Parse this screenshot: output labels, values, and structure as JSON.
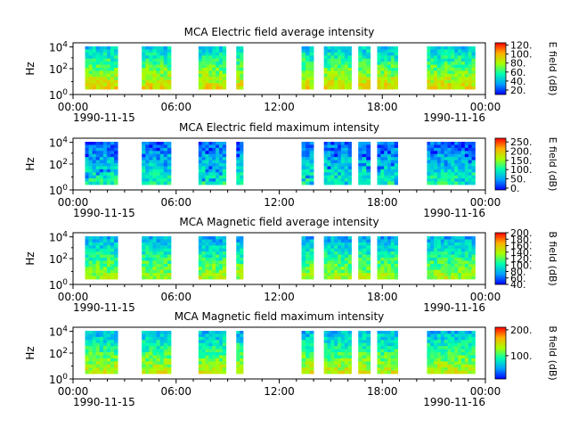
{
  "chart_data": [
    {
      "type": "heatmap",
      "title": "MCA  Electric field average intensity",
      "ylabel": "Hz",
      "y_ticks": [
        "10^0",
        "10^2",
        "10^4"
      ],
      "x_ticks": [
        "00:00",
        "06:00",
        "12:00",
        "18:00",
        "00:00"
      ],
      "x_date_start": "1990-11-15",
      "x_date_end": "1990-11-16",
      "colorbar": {
        "label": "E field (dB)",
        "ticks": [
          "20.",
          "40.",
          "60.",
          "80.",
          "100.",
          "120."
        ],
        "range": [
          10,
          125
        ]
      },
      "data_intervals_hours": [
        [
          0.7,
          2.6
        ],
        [
          4.0,
          5.7
        ],
        [
          7.3,
          8.9
        ],
        [
          9.5,
          9.9
        ],
        [
          13.3,
          14.0
        ],
        [
          14.6,
          16.2
        ],
        [
          16.6,
          17.3
        ],
        [
          17.7,
          18.9
        ],
        [
          20.6,
          23.4
        ]
      ]
    },
    {
      "type": "heatmap",
      "title": "MCA  Electric field maximum intensity",
      "ylabel": "Hz",
      "y_ticks": [
        "10^0",
        "10^2",
        "10^4"
      ],
      "x_ticks": [
        "00:00",
        "06:00",
        "12:00",
        "18:00",
        "00:00"
      ],
      "x_date_start": "1990-11-15",
      "x_date_end": "1990-11-16",
      "colorbar": {
        "label": "E field (dB)",
        "ticks": [
          "0.",
          "50.",
          "100.",
          "150.",
          "200.",
          "250."
        ],
        "range": [
          -10,
          270
        ]
      },
      "data_intervals_hours": [
        [
          0.7,
          2.6
        ],
        [
          4.0,
          5.7
        ],
        [
          7.3,
          8.9
        ],
        [
          9.5,
          9.9
        ],
        [
          13.3,
          14.0
        ],
        [
          14.6,
          16.2
        ],
        [
          16.6,
          17.3
        ],
        [
          17.7,
          18.9
        ],
        [
          20.6,
          23.4
        ]
      ]
    },
    {
      "type": "heatmap",
      "title": "MCA  Magnetic field average intensity",
      "ylabel": "Hz",
      "y_ticks": [
        "10^0",
        "10^2",
        "10^4"
      ],
      "x_ticks": [
        "00:00",
        "06:00",
        "12:00",
        "18:00",
        "00:00"
      ],
      "x_date_start": "1990-11-15",
      "x_date_end": "1990-11-16",
      "colorbar": {
        "label": "B field (dB)",
        "ticks": [
          "40.",
          "60.",
          "80.",
          "100.",
          "120.",
          "140.",
          "160.",
          "180.",
          "200."
        ],
        "range": [
          40,
          200
        ]
      },
      "data_intervals_hours": [
        [
          0.7,
          2.6
        ],
        [
          4.0,
          5.7
        ],
        [
          7.3,
          8.9
        ],
        [
          9.5,
          9.9
        ],
        [
          13.3,
          14.0
        ],
        [
          14.6,
          16.2
        ],
        [
          16.6,
          17.3
        ],
        [
          17.7,
          18.9
        ],
        [
          20.6,
          23.4
        ]
      ]
    },
    {
      "type": "heatmap",
      "title": "MCA  Magnetic field maximum intensity",
      "ylabel": "Hz",
      "y_ticks": [
        "10^0",
        "10^2",
        "10^4"
      ],
      "x_ticks": [
        "00:00",
        "06:00",
        "12:00",
        "18:00",
        "00:00"
      ],
      "x_date_start": "1990-11-15",
      "x_date_end": "1990-11-16",
      "colorbar": {
        "label": "B field (dB)",
        "ticks": [
          "100.",
          "200."
        ],
        "range": [
          10,
          210
        ]
      },
      "data_intervals_hours": [
        [
          0.7,
          2.6
        ],
        [
          4.0,
          5.7
        ],
        [
          7.3,
          8.9
        ],
        [
          9.5,
          9.9
        ],
        [
          13.3,
          14.0
        ],
        [
          14.6,
          16.2
        ],
        [
          16.6,
          17.3
        ],
        [
          17.7,
          18.9
        ],
        [
          20.6,
          23.4
        ]
      ]
    }
  ]
}
